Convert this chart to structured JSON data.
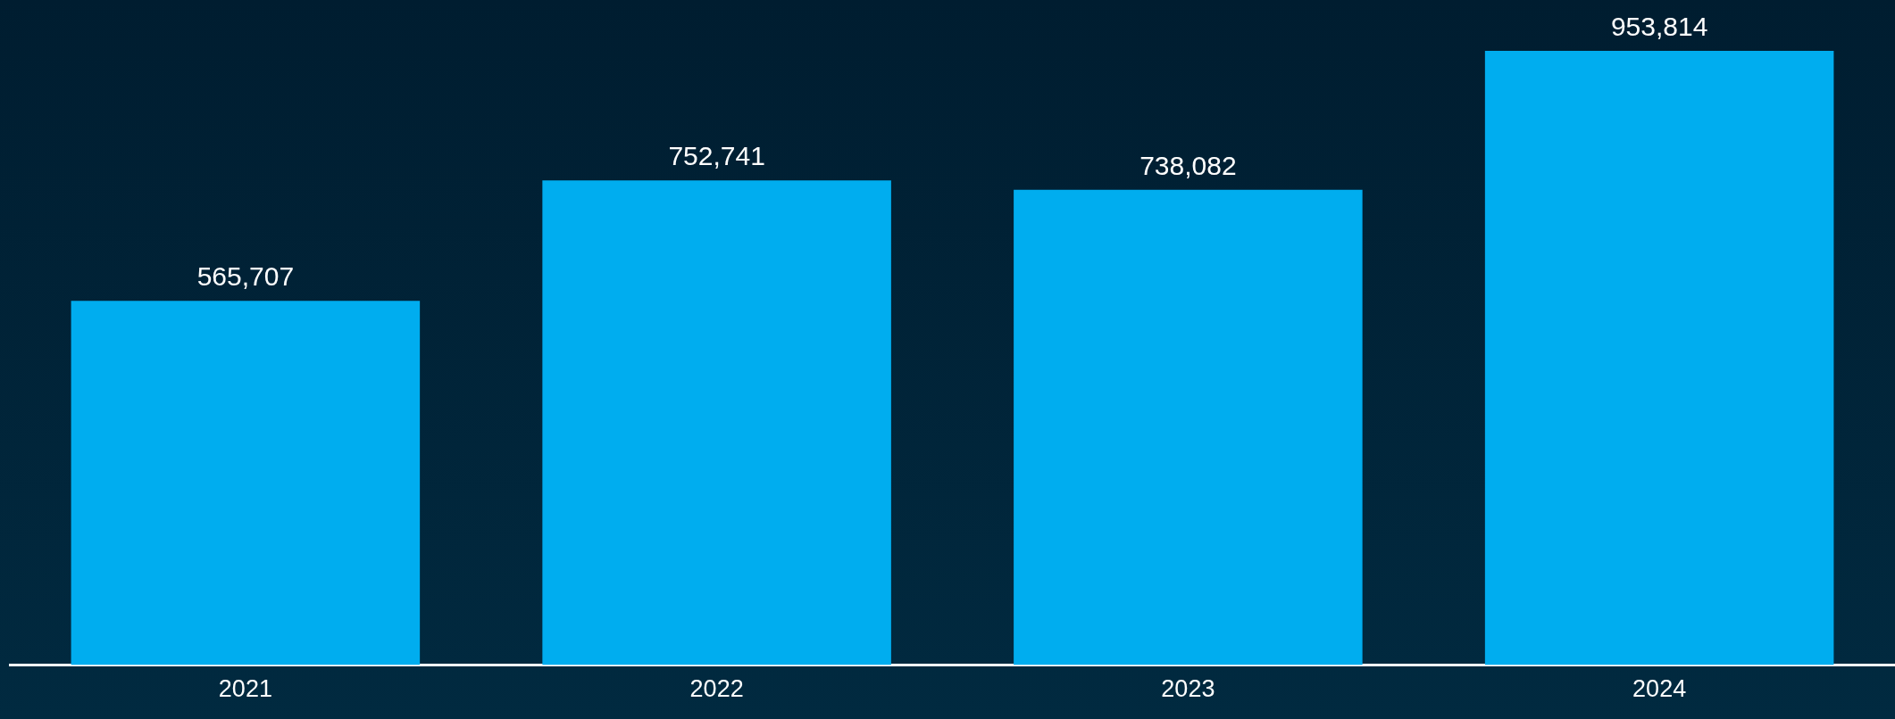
{
  "chart_data": {
    "type": "bar",
    "categories": [
      "2021",
      "2022",
      "2023",
      "2024"
    ],
    "values": [
      565707,
      752741,
      738082,
      953814
    ],
    "color": "#00adef",
    "value_labels": [
      "565,707",
      "752,741",
      "738,082",
      "953,814"
    ],
    "grid": false,
    "legend": false
  }
}
